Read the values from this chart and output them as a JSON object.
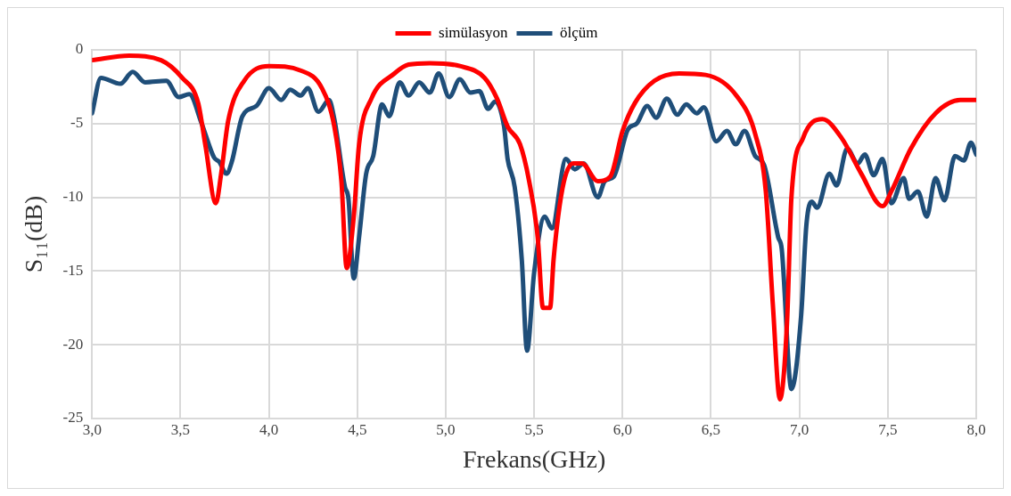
{
  "chart_data": {
    "type": "line",
    "xlabel": "Frekans(GHz)",
    "ylabel": "S₁₁(dB)",
    "xlim": [
      3,
      8
    ],
    "xticks": [
      {
        "value": 3,
        "label": "3,0"
      },
      {
        "value": 3.5,
        "label": "3,5"
      },
      {
        "value": 4,
        "label": "4,0"
      },
      {
        "value": 4.5,
        "label": "4,5"
      },
      {
        "value": 5,
        "label": "5,0"
      },
      {
        "value": 5.5,
        "label": "5,5"
      },
      {
        "value": 6,
        "label": "6,0"
      },
      {
        "value": 6.5,
        "label": "6,5"
      },
      {
        "value": 7,
        "label": "7,0"
      },
      {
        "value": 7.5,
        "label": "7,5"
      },
      {
        "value": 8,
        "label": "8,0"
      }
    ],
    "ylim": [
      -25,
      0
    ],
    "yticks": [
      -25,
      -20,
      -15,
      -10,
      -5,
      0
    ],
    "grid": true,
    "legend": "top",
    "marker": "none",
    "line_style": "solid",
    "series": [
      {
        "name": "simülasyon",
        "color": "#ff0000",
        "x": [
          3.0,
          3.21,
          3.39,
          3.51,
          3.6,
          3.64,
          3.7,
          3.73,
          3.77,
          3.86,
          4.0,
          4.18,
          4.3,
          4.37,
          4.41,
          4.44,
          4.48,
          4.51,
          4.58,
          4.71,
          4.79,
          4.91,
          5.08,
          5.22,
          5.29,
          5.35,
          5.42,
          5.47,
          5.52,
          5.55,
          5.59,
          5.61,
          5.66,
          5.72,
          5.77,
          5.86,
          5.93,
          6.0,
          6.07,
          6.18,
          6.32,
          6.47,
          6.65,
          6.75,
          6.81,
          6.85,
          6.89,
          6.93,
          6.955,
          7.02,
          7.13,
          7.24,
          7.35,
          7.47,
          7.52,
          7.63,
          7.77,
          7.91,
          8.0
        ],
        "values": [
          -0.7,
          -0.4,
          -0.7,
          -1.9,
          -3.6,
          -6.4,
          -10.4,
          -8.4,
          -4.8,
          -2.1,
          -1.1,
          -1.4,
          -2.6,
          -5.2,
          -8.9,
          -14.8,
          -11.3,
          -6.4,
          -3.3,
          -1.6,
          -1.0,
          -0.9,
          -1.1,
          -1.9,
          -3.3,
          -5.2,
          -6.4,
          -8.8,
          -12.7,
          -17.5,
          -17.5,
          -14.2,
          -9.4,
          -7.7,
          -7.7,
          -8.9,
          -8.6,
          -5.5,
          -3.6,
          -2.1,
          -1.6,
          -1.7,
          -3.2,
          -5.7,
          -9.6,
          -17.3,
          -23.7,
          -18.5,
          -10,
          -6,
          -4.7,
          -6,
          -8.4,
          -10.6,
          -9.6,
          -6.7,
          -4.3,
          -3.4,
          -3.4
        ]
      },
      {
        "name": "ölçüm",
        "color": "#1f4e79",
        "x": [
          3.0,
          3.05,
          3.16,
          3.23,
          3.3,
          3.42,
          3.49,
          3.55,
          3.62,
          3.69,
          3.72,
          3.76,
          3.79,
          3.85,
          3.93,
          4.0,
          4.07,
          4.12,
          4.18,
          4.22,
          4.28,
          4.34,
          4.37,
          4.43,
          4.45,
          4.48,
          4.51,
          4.55,
          4.59,
          4.64,
          4.68,
          4.74,
          4.79,
          4.85,
          4.91,
          4.96,
          5.02,
          5.08,
          5.14,
          5.19,
          5.24,
          5.28,
          5.33,
          5.35,
          5.39,
          5.43,
          5.46,
          5.5,
          5.56,
          5.6,
          5.68,
          5.73,
          5.78,
          5.86,
          5.9,
          5.95,
          6.03,
          6.08,
          6.14,
          6.19,
          6.25,
          6.31,
          6.36,
          6.42,
          6.46,
          6.53,
          6.59,
          6.64,
          6.69,
          6.75,
          6.8,
          6.88,
          6.9,
          6.955,
          7.01,
          7.04,
          7.07,
          7.1,
          7.17,
          7.21,
          7.27,
          7.33,
          7.37,
          7.42,
          7.47,
          7.52,
          7.59,
          7.62,
          7.67,
          7.72,
          7.77,
          7.82,
          7.88,
          7.93,
          7.97,
          8.0
        ],
        "values": [
          -4.3,
          -1.9,
          -2.3,
          -1.5,
          -2.2,
          -2.1,
          -3.2,
          -3.0,
          -5.0,
          -7.3,
          -7.6,
          -8.4,
          -7.6,
          -4.5,
          -3.8,
          -2.6,
          -3.4,
          -2.7,
          -3.1,
          -2.6,
          -4.2,
          -3.4,
          -4.7,
          -9.3,
          -10.1,
          -15.5,
          -12.7,
          -8.4,
          -7.2,
          -3.7,
          -4.5,
          -2.2,
          -3.1,
          -2.2,
          -2.9,
          -1.6,
          -3.2,
          -2.0,
          -2.9,
          -2.8,
          -4.0,
          -3.5,
          -5.2,
          -7.4,
          -9.3,
          -14.2,
          -20.4,
          -15.1,
          -11.3,
          -12.1,
          -7.4,
          -8.1,
          -7.7,
          -10,
          -8.9,
          -8.6,
          -5.4,
          -5.0,
          -3.8,
          -4.6,
          -3.3,
          -4.4,
          -3.7,
          -4.3,
          -3.9,
          -6.2,
          -5.5,
          -6.4,
          -5.5,
          -7.2,
          -7.8,
          -12.7,
          -13.5,
          -23,
          -18,
          -11.8,
          -10.3,
          -10.7,
          -8.4,
          -9.2,
          -6.7,
          -7.7,
          -7.1,
          -8.5,
          -7.4,
          -10.4,
          -8.7,
          -10.1,
          -9.6,
          -11.3,
          -8.7,
          -10.2,
          -7.2,
          -7.5,
          -6.3,
          -7.1
        ]
      }
    ]
  }
}
